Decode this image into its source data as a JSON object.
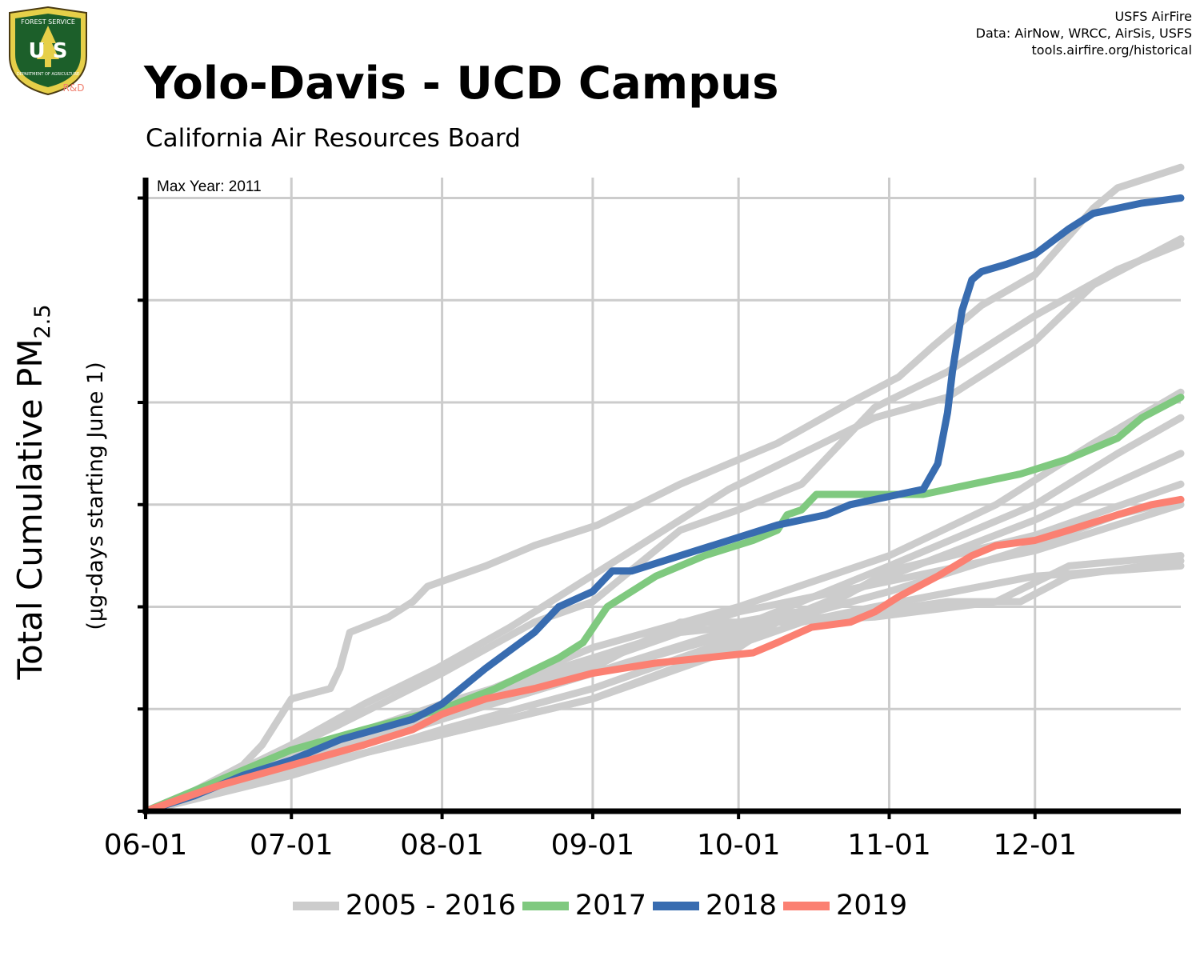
{
  "header": {
    "title": "Yolo-Davis - UCD Campus",
    "subtitle": "California Air Resources Board",
    "credits": [
      "USFS AirFire",
      "Data: AirNow, WRCC, AirSis, USFS",
      "tools.airfire.org/historical"
    ]
  },
  "logo": {
    "top_text": "FOREST SERVICE",
    "letters": "U S",
    "bottom_text": "DEPARTMENT OF AGRICULTURE",
    "tag": "R&D"
  },
  "chart_data": {
    "type": "line",
    "annotation": "Max Year: 2011",
    "ylabel": "Total Cumulative PM",
    "ylabel_subscript": "2.5",
    "ylabel_sub": "(µg-days starting June 1)",
    "x_tick_labels": [
      "06-01",
      "07-01",
      "08-01",
      "09-01",
      "10-01",
      "11-01",
      "12-01"
    ],
    "x_tick_days": [
      0,
      30,
      61,
      92,
      122,
      153,
      183
    ],
    "xlim": [
      0,
      213
    ],
    "ylim": [
      0,
      6.2
    ],
    "y_ticks": [
      0,
      1,
      2,
      3,
      4,
      5,
      6
    ],
    "grid": true,
    "legend_position": "bottom",
    "colors": {
      "history": "#cccccc",
      "2017": "#7fc97f",
      "2018": "#386cb0",
      "2019": "#fb8072"
    },
    "legend": [
      {
        "label": "2005 - 2016",
        "color": "#cccccc"
      },
      {
        "label": "2017",
        "color": "#7fc97f"
      },
      {
        "label": "2018",
        "color": "#386cb0"
      },
      {
        "label": "2019",
        "color": "#fb8072"
      }
    ],
    "history_series": [
      [
        [
          0,
          0
        ],
        [
          10,
          0.2
        ],
        [
          20,
          0.45
        ],
        [
          24,
          0.65
        ],
        [
          30,
          1.1
        ],
        [
          38,
          1.2
        ],
        [
          40,
          1.4
        ],
        [
          42,
          1.75
        ],
        [
          50,
          1.9
        ],
        [
          55,
          2.05
        ],
        [
          58,
          2.2
        ],
        [
          70,
          2.4
        ],
        [
          80,
          2.6
        ],
        [
          93,
          2.8
        ],
        [
          110,
          3.2
        ],
        [
          130,
          3.6
        ],
        [
          145,
          4.0
        ],
        [
          155,
          4.25
        ],
        [
          162,
          4.55
        ],
        [
          172,
          4.95
        ],
        [
          183,
          5.25
        ],
        [
          195,
          5.9
        ],
        [
          200,
          6.1
        ],
        [
          213,
          6.3
        ]
      ],
      [
        [
          0,
          0
        ],
        [
          15,
          0.3
        ],
        [
          30,
          0.65
        ],
        [
          45,
          1.05
        ],
        [
          60,
          1.4
        ],
        [
          75,
          1.8
        ],
        [
          90,
          2.25
        ],
        [
          105,
          2.7
        ],
        [
          120,
          3.15
        ],
        [
          135,
          3.5
        ],
        [
          150,
          3.85
        ],
        [
          165,
          4.05
        ],
        [
          183,
          4.6
        ],
        [
          195,
          5.15
        ],
        [
          213,
          5.6
        ]
      ],
      [
        [
          0,
          0
        ],
        [
          20,
          0.4
        ],
        [
          40,
          0.85
        ],
        [
          61,
          1.35
        ],
        [
          80,
          1.85
        ],
        [
          92,
          2.05
        ],
        [
          110,
          2.75
        ],
        [
          122,
          2.95
        ],
        [
          135,
          3.2
        ],
        [
          150,
          3.95
        ],
        [
          165,
          4.3
        ],
        [
          183,
          4.85
        ],
        [
          200,
          5.3
        ],
        [
          213,
          5.55
        ]
      ],
      [
        [
          0,
          0
        ],
        [
          30,
          0.5
        ],
        [
          61,
          1.0
        ],
        [
          92,
          1.6
        ],
        [
          122,
          2.0
        ],
        [
          153,
          2.5
        ],
        [
          175,
          3.0
        ],
        [
          195,
          3.6
        ],
        [
          213,
          4.1
        ]
      ],
      [
        [
          0,
          0
        ],
        [
          30,
          0.45
        ],
        [
          61,
          0.9
        ],
        [
          92,
          1.35
        ],
        [
          122,
          1.8
        ],
        [
          153,
          2.4
        ],
        [
          183,
          3.0
        ],
        [
          200,
          3.5
        ],
        [
          213,
          3.85
        ]
      ],
      [
        [
          0,
          0
        ],
        [
          30,
          0.55
        ],
        [
          61,
          1.05
        ],
        [
          92,
          1.5
        ],
        [
          122,
          1.95
        ],
        [
          153,
          2.25
        ],
        [
          183,
          2.55
        ],
        [
          213,
          3.0
        ]
      ],
      [
        [
          0,
          0
        ],
        [
          30,
          0.35
        ],
        [
          61,
          0.8
        ],
        [
          92,
          1.2
        ],
        [
          122,
          1.7
        ],
        [
          153,
          2.3
        ],
        [
          183,
          2.85
        ],
        [
          213,
          3.5
        ]
      ],
      [
        [
          0,
          0
        ],
        [
          30,
          0.45
        ],
        [
          61,
          0.95
        ],
        [
          92,
          1.4
        ],
        [
          110,
          1.85
        ],
        [
          122,
          1.85
        ],
        [
          140,
          2.0
        ],
        [
          153,
          2.35
        ],
        [
          183,
          2.7
        ],
        [
          213,
          3.2
        ]
      ],
      [
        [
          0,
          0
        ],
        [
          30,
          0.5
        ],
        [
          61,
          0.9
        ],
        [
          92,
          1.35
        ],
        [
          122,
          1.75
        ],
        [
          153,
          2.15
        ],
        [
          183,
          2.6
        ],
        [
          200,
          2.9
        ],
        [
          213,
          3.05
        ]
      ],
      [
        [
          0,
          0
        ],
        [
          30,
          0.4
        ],
        [
          61,
          0.75
        ],
        [
          92,
          1.1
        ],
        [
          122,
          1.6
        ],
        [
          130,
          1.85
        ],
        [
          150,
          1.9
        ],
        [
          175,
          2.05
        ],
        [
          190,
          2.4
        ],
        [
          213,
          2.5
        ]
      ],
      [
        [
          0,
          0
        ],
        [
          30,
          0.4
        ],
        [
          61,
          0.75
        ],
        [
          92,
          1.1
        ],
        [
          120,
          1.6
        ],
        [
          135,
          1.85
        ],
        [
          150,
          2.0
        ],
        [
          183,
          2.3
        ],
        [
          213,
          2.4
        ]
      ],
      [
        [
          0,
          0
        ],
        [
          30,
          0.5
        ],
        [
          61,
          1.0
        ],
        [
          92,
          1.45
        ],
        [
          110,
          1.75
        ],
        [
          130,
          1.85
        ],
        [
          150,
          1.95
        ],
        [
          165,
          2.05
        ],
        [
          180,
          2.05
        ],
        [
          190,
          2.3
        ],
        [
          213,
          2.45
        ]
      ]
    ],
    "series": [
      {
        "name": "2017",
        "points": [
          [
            0,
            0
          ],
          [
            15,
            0.3
          ],
          [
            30,
            0.6
          ],
          [
            45,
            0.8
          ],
          [
            61,
            1.0
          ],
          [
            72,
            1.2
          ],
          [
            85,
            1.5
          ],
          [
            90,
            1.65
          ],
          [
            95,
            2.0
          ],
          [
            105,
            2.3
          ],
          [
            115,
            2.5
          ],
          [
            125,
            2.65
          ],
          [
            130,
            2.75
          ],
          [
            132,
            2.9
          ],
          [
            135,
            2.95
          ],
          [
            138,
            3.1
          ],
          [
            145,
            3.1
          ],
          [
            153,
            3.1
          ],
          [
            160,
            3.1
          ],
          [
            170,
            3.2
          ],
          [
            180,
            3.3
          ],
          [
            190,
            3.45
          ],
          [
            200,
            3.65
          ],
          [
            205,
            3.85
          ],
          [
            213,
            4.05
          ]
        ]
      },
      {
        "name": "2018",
        "points": [
          [
            0,
            0
          ],
          [
            10,
            0.15
          ],
          [
            20,
            0.35
          ],
          [
            30,
            0.5
          ],
          [
            40,
            0.7
          ],
          [
            55,
            0.9
          ],
          [
            61,
            1.05
          ],
          [
            70,
            1.4
          ],
          [
            80,
            1.75
          ],
          [
            85,
            2.0
          ],
          [
            92,
            2.15
          ],
          [
            96,
            2.35
          ],
          [
            100,
            2.35
          ],
          [
            110,
            2.5
          ],
          [
            120,
            2.65
          ],
          [
            130,
            2.8
          ],
          [
            140,
            2.9
          ],
          [
            145,
            3.0
          ],
          [
            150,
            3.05
          ],
          [
            155,
            3.1
          ],
          [
            160,
            3.15
          ],
          [
            163,
            3.4
          ],
          [
            165,
            3.9
          ],
          [
            166,
            4.3
          ],
          [
            168,
            4.9
          ],
          [
            170,
            5.2
          ],
          [
            172,
            5.28
          ],
          [
            177,
            5.35
          ],
          [
            183,
            5.45
          ],
          [
            190,
            5.7
          ],
          [
            195,
            5.85
          ],
          [
            205,
            5.95
          ],
          [
            213,
            6.0
          ]
        ]
      },
      {
        "name": "2019",
        "points": [
          [
            0,
            0
          ],
          [
            15,
            0.25
          ],
          [
            30,
            0.45
          ],
          [
            45,
            0.65
          ],
          [
            55,
            0.8
          ],
          [
            61,
            0.95
          ],
          [
            70,
            1.1
          ],
          [
            80,
            1.2
          ],
          [
            92,
            1.35
          ],
          [
            105,
            1.45
          ],
          [
            115,
            1.5
          ],
          [
            125,
            1.55
          ],
          [
            130,
            1.65
          ],
          [
            137,
            1.8
          ],
          [
            145,
            1.85
          ],
          [
            150,
            1.95
          ],
          [
            155,
            2.1
          ],
          [
            163,
            2.3
          ],
          [
            170,
            2.5
          ],
          [
            175,
            2.6
          ],
          [
            183,
            2.65
          ],
          [
            190,
            2.75
          ],
          [
            200,
            2.9
          ],
          [
            207,
            3.0
          ],
          [
            213,
            3.05
          ]
        ]
      }
    ]
  }
}
